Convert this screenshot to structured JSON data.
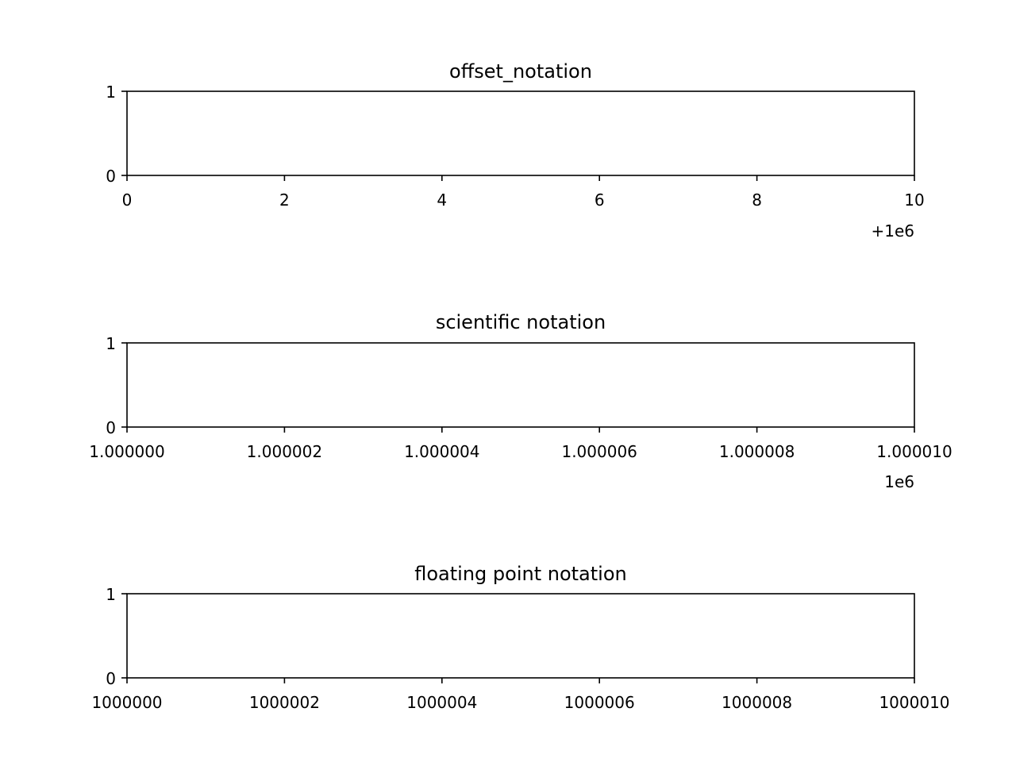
{
  "chart_data": [
    {
      "type": "line",
      "title": "offset_notation",
      "xlim": [
        1000000,
        1000010
      ],
      "ylim": [
        0,
        1
      ],
      "x_ticks": [
        1000000,
        1000002,
        1000004,
        1000006,
        1000008,
        1000010
      ],
      "x_tick_labels": [
        "0",
        "2",
        "4",
        "6",
        "8",
        "10"
      ],
      "x_offset_label": "+1e6",
      "y_ticks": [
        0,
        1
      ],
      "y_tick_labels": [
        "0",
        "1"
      ],
      "series": [],
      "grid": false
    },
    {
      "type": "line",
      "title": "scientific notation",
      "xlim": [
        1000000,
        1000010
      ],
      "ylim": [
        0,
        1
      ],
      "x_ticks": [
        1000000,
        1000002,
        1000004,
        1000006,
        1000008,
        1000010
      ],
      "x_tick_labels": [
        "1.000000",
        "1.000002",
        "1.000004",
        "1.000006",
        "1.000008",
        "1.000010"
      ],
      "x_offset_label": "1e6",
      "y_ticks": [
        0,
        1
      ],
      "y_tick_labels": [
        "0",
        "1"
      ],
      "series": [],
      "grid": false
    },
    {
      "type": "line",
      "title": "floating point notation",
      "xlim": [
        1000000,
        1000010
      ],
      "ylim": [
        0,
        1
      ],
      "x_ticks": [
        1000000,
        1000002,
        1000004,
        1000006,
        1000008,
        1000010
      ],
      "x_tick_labels": [
        "1000000",
        "1000002",
        "1000004",
        "1000006",
        "1000008",
        "1000010"
      ],
      "x_offset_label": "",
      "y_ticks": [
        0,
        1
      ],
      "y_tick_labels": [
        "0",
        "1"
      ],
      "series": [],
      "grid": false
    }
  ]
}
